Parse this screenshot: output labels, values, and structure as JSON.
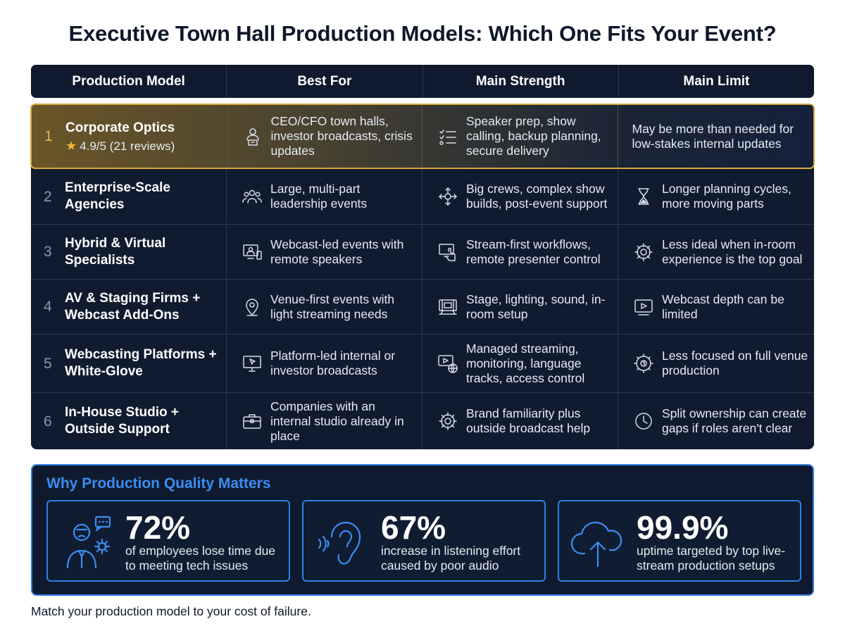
{
  "title": "Executive Town Hall Production Models: Which One Fits Your Event?",
  "columns": [
    "Production Model",
    "Best For",
    "Main Strength",
    "Main Limit"
  ],
  "rows": [
    {
      "num": "1",
      "name": "Corporate Optics",
      "rating": "4.9/5 (21 reviews)",
      "best_for": "CEO/CFO town halls, investor broadcasts, crisis updates",
      "best_for_icon": "speaker-podium-icon",
      "strength": "Speaker prep, show calling, backup planning, secure delivery",
      "strength_icon": "checklist-icon",
      "limit": "May be more than needed for low-stakes internal updates",
      "limit_icon": ""
    },
    {
      "num": "2",
      "name": "Enterprise-Scale Agencies",
      "rating": "",
      "best_for": "Large, multi-part leadership events",
      "best_for_icon": "group-icon",
      "strength": "Big crews, complex show builds, post-event support",
      "strength_icon": "network-arrows-icon",
      "limit": "Longer planning cycles, more moving parts",
      "limit_icon": "hourglass-icon"
    },
    {
      "num": "3",
      "name": "Hybrid & Virtual Specialists",
      "rating": "",
      "best_for": "Webcast-led events with remote speakers",
      "best_for_icon": "remote-speaker-icon",
      "strength": "Stream-first workflows, remote presenter control",
      "strength_icon": "touch-screen-icon",
      "limit": "Less ideal when in-room experience is the top goal",
      "limit_icon": "gear-icon"
    },
    {
      "num": "4",
      "name": "AV & Staging Firms + Webcast Add-Ons",
      "rating": "",
      "best_for": "Venue-first events with light streaming needs",
      "best_for_icon": "location-pin-icon",
      "strength": "Stage, lighting, sound, in-room setup",
      "strength_icon": "stage-screen-icon",
      "limit": "Webcast depth can be limited",
      "limit_icon": "video-play-icon"
    },
    {
      "num": "5",
      "name": "Webcasting Platforms + White-Glove",
      "rating": "",
      "best_for": "Platform-led internal or investor broadcasts",
      "best_for_icon": "monitor-cursor-icon",
      "strength": "Managed streaming, monitoring, language tracks, access control",
      "strength_icon": "video-globe-icon",
      "limit": "Less focused on full venue production",
      "limit_icon": "badge-gear-icon"
    },
    {
      "num": "6",
      "name": "In-House Studio + Outside Support",
      "rating": "",
      "best_for": "Companies with an internal studio already in place",
      "best_for_icon": "briefcase-icon",
      "strength": "Brand familiarity plus outside broadcast help",
      "strength_icon": "gear-icon",
      "limit": "Split ownership can create gaps if roles aren't clear",
      "limit_icon": "clock-icon"
    }
  ],
  "why": {
    "title": "Why Production Quality Matters",
    "stats": [
      {
        "value": "72%",
        "desc": "of employees lose time due to meeting tech issues",
        "icon": "frustrated-person-icon"
      },
      {
        "value": "67%",
        "desc": "increase in listening effort caused by poor audio",
        "icon": "ear-sound-icon"
      },
      {
        "value": "99.9%",
        "desc": "uptime targeted by top live-stream production setups",
        "icon": "cloud-upload-icon"
      }
    ]
  },
  "footer": "Match your production model to your cost of failure."
}
